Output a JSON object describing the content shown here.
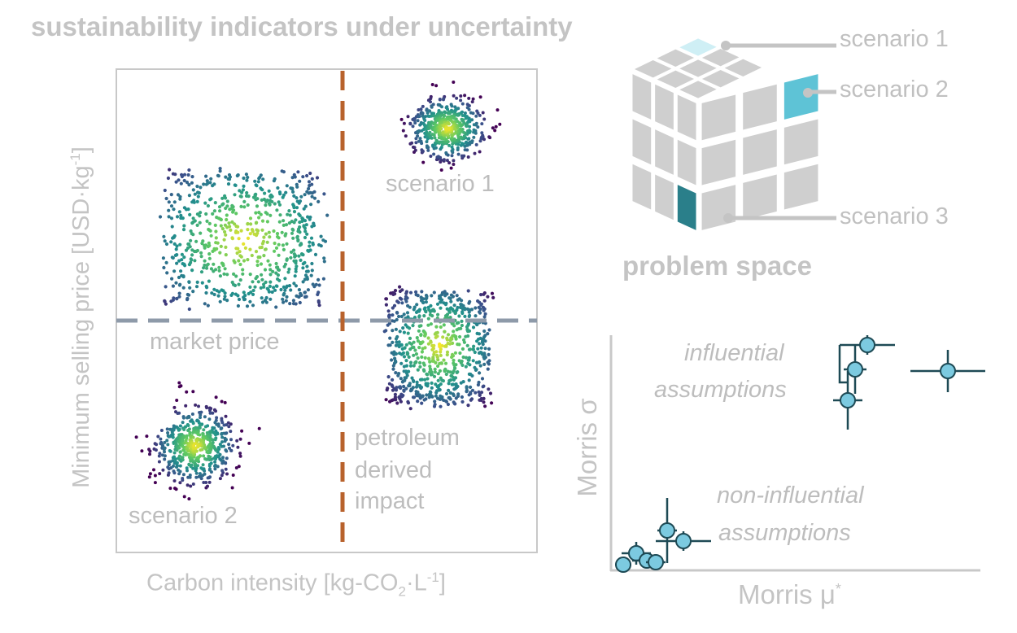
{
  "title": "sustainability indicators under uncertainty",
  "scatter": {
    "ylabel_text": "Minimum selling price [USD·kg",
    "ylabel_sup": "-1",
    "ylabel_end": "]",
    "xlabel_pre": "Carbon intensity [kg-CO",
    "xlabel_sub": "2",
    "xlabel_mid": "·L",
    "xlabel_sup": "-1",
    "xlabel_end": "]",
    "market_price_label": "market price",
    "petroleum_label_1": "petroleum",
    "petroleum_label_2": "derived",
    "petroleum_label_3": "impact",
    "scenario1_label": "scenario 1",
    "scenario2_label": "scenario 2",
    "colors": {
      "market_line": "#8e9aa9",
      "petroleum_line": "#b8622c",
      "frame": "#c8c8c8"
    }
  },
  "cube": {
    "scenario1_label": "scenario 1",
    "scenario2_label": "scenario 2",
    "scenario3_label": "scenario 3",
    "caption": "problem space",
    "colors": {
      "tile": "#cfcfcf",
      "scenario1": "#cfeff5",
      "scenario2": "#5ec3d6",
      "scenario3": "#2a7f8a",
      "pointer": "#c4c4c4"
    }
  },
  "morris": {
    "ylabel": "Morris σ",
    "xlabel": "Morris μ",
    "xlabel_sup": "*",
    "influential_1": "influential",
    "influential_2": "assumptions",
    "noninfluential_1": "non-influential",
    "noninfluential_2": "assumptions",
    "colors": {
      "point": "#7ccae0",
      "stroke": "#1e4a55"
    }
  }
}
